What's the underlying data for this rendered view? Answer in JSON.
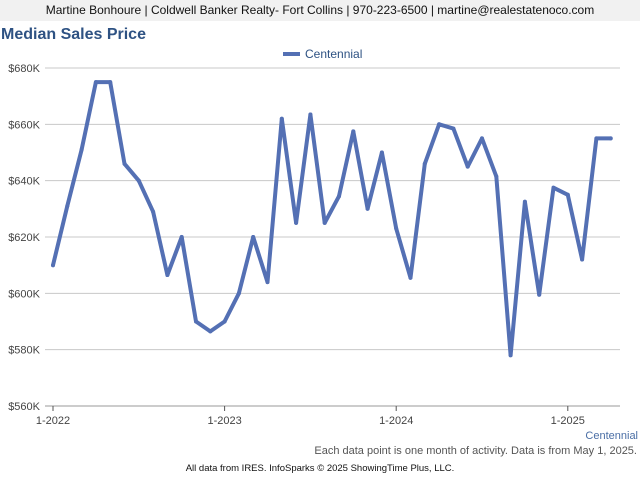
{
  "header": {
    "contact": "Martine Bonhoure | Coldwell Banker Realty- Fort Collins | 970-223-6500 | martine@realestatenoco.com"
  },
  "chart_title": "Median Sales Price",
  "footer": {
    "note": "Each data point is one month of activity. Data is from May 1, 2025.",
    "source": "All data from IRES. InfoSparks © 2025 ShowingTime Plus, LLC."
  },
  "colors": {
    "series": "#5470b4",
    "grid": "#c8c8c8",
    "title": "#2e5283"
  },
  "chart_data": {
    "type": "line",
    "title": "Median Sales Price",
    "xlabel": "",
    "ylabel": "",
    "ylim": [
      560000,
      680000
    ],
    "y_ticks": [
      560000,
      580000,
      600000,
      620000,
      640000,
      660000,
      680000
    ],
    "y_tick_labels": [
      "$560K",
      "$580K",
      "$600K",
      "$620K",
      "$640K",
      "$660K",
      "$680K"
    ],
    "x_ticks": [
      "2022-01",
      "2023-01",
      "2024-01",
      "2025-01"
    ],
    "x_tick_labels": [
      "1-2022",
      "1-2023",
      "1-2024",
      "1-2025"
    ],
    "grid": true,
    "legend_position": "top-center",
    "series": [
      {
        "name": "Centennial",
        "end_label": "Centennial",
        "x": [
          "2022-01",
          "2022-02",
          "2022-03",
          "2022-04",
          "2022-05",
          "2022-06",
          "2022-07",
          "2022-08",
          "2022-09",
          "2022-10",
          "2022-11",
          "2022-12",
          "2023-01",
          "2023-02",
          "2023-03",
          "2023-04",
          "2023-05",
          "2023-06",
          "2023-07",
          "2023-08",
          "2023-09",
          "2023-10",
          "2023-11",
          "2023-12",
          "2024-01",
          "2024-02",
          "2024-03",
          "2024-04",
          "2024-05",
          "2024-06",
          "2024-07",
          "2024-08",
          "2024-09",
          "2024-10",
          "2024-11",
          "2024-12",
          "2025-01",
          "2025-02",
          "2025-03",
          "2025-04"
        ],
        "values": [
          610000,
          631000,
          651000,
          675000,
          675000,
          646000,
          640000,
          629000,
          606500,
          620000,
          590000,
          586500,
          590000,
          600000,
          620000,
          604000,
          662000,
          625000,
          663500,
          625000,
          634500,
          657500,
          630000,
          650000,
          623000,
          605500,
          646000,
          660000,
          658500,
          645000,
          655000,
          641500,
          578000,
          632500,
          599500,
          637500,
          635000,
          612000,
          655000,
          655000
        ]
      }
    ]
  }
}
